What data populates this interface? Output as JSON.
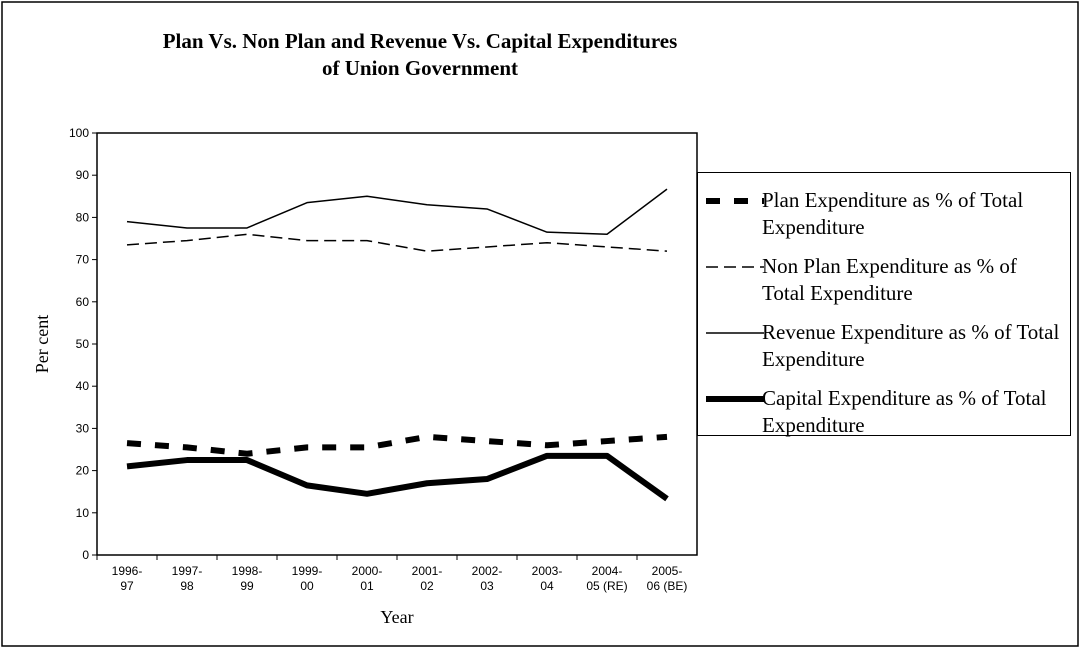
{
  "chart_data": {
    "type": "line",
    "title": [
      "Plan Vs. Non Plan and Revenue Vs. Capital Expenditures",
      "of Union Government"
    ],
    "x_label": "Year",
    "y_label": "Per cent",
    "categories": [
      [
        "1996-",
        "97"
      ],
      [
        "1997-",
        "98"
      ],
      [
        "1998-",
        "99"
      ],
      [
        "1999-",
        "00"
      ],
      [
        "2000-",
        "01"
      ],
      [
        "2001-",
        "02"
      ],
      [
        "2002-",
        "03"
      ],
      [
        "2003-",
        "04"
      ],
      [
        "2004-",
        "05 (RE)"
      ],
      [
        "2005-",
        "06 (BE)"
      ]
    ],
    "ylim": [
      0,
      100
    ],
    "yticks": [
      0,
      10,
      20,
      30,
      40,
      50,
      60,
      70,
      80,
      90,
      100
    ],
    "grid": false,
    "legend": "right",
    "series": [
      {
        "name": "Plan Expenditure as % of Total Expenditure",
        "color": "#000000",
        "width": 6,
        "dash": "14 14",
        "values": [
          26.5,
          25.5,
          24,
          25.5,
          25.5,
          28,
          27,
          26,
          27,
          28
        ]
      },
      {
        "name": "Non Plan Expenditure as % of Total Expenditure",
        "color": "#000000",
        "width": 1.5,
        "dash": "12 6",
        "values": [
          73.5,
          74.5,
          76,
          74.5,
          74.5,
          72,
          73,
          74,
          73,
          72
        ]
      },
      {
        "name": "Revenue Expenditure as % of Total Expenditure",
        "color": "#000000",
        "width": 1.5,
        "dash": "none",
        "values": [
          79,
          77.5,
          77.5,
          83.5,
          85,
          83,
          82,
          76.5,
          76,
          86.7
        ]
      },
      {
        "name": "Capital Expenditure as % of Total Expenditure",
        "color": "#000000",
        "width": 6,
        "dash": "none",
        "values": [
          21,
          22.5,
          22.5,
          16.5,
          14.5,
          17,
          18,
          23.5,
          23.5,
          13.3
        ]
      }
    ]
  }
}
